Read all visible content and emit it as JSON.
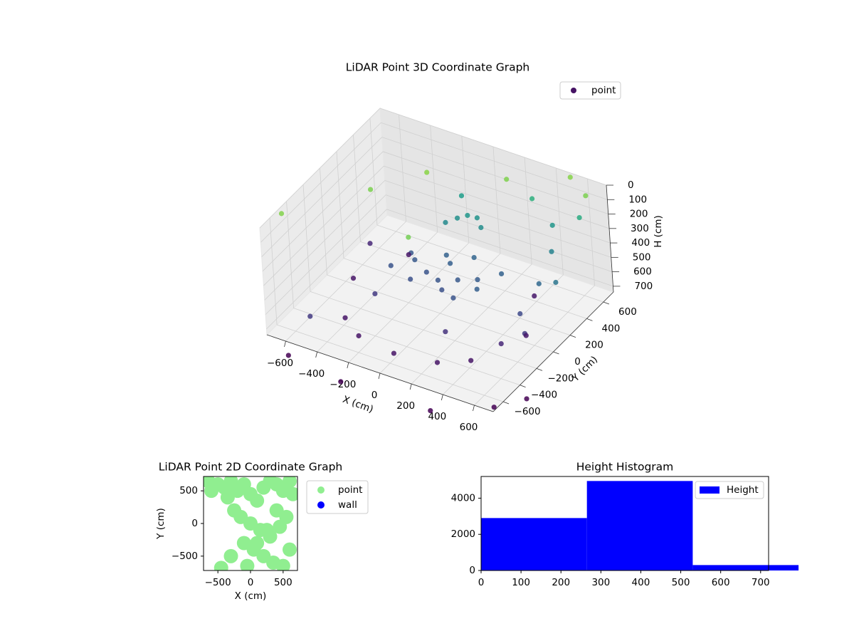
{
  "chart_data": [
    {
      "type": "scatter3d",
      "title": "LiDAR Point 3D Coordinate Graph",
      "xlabel": "X (cm)",
      "ylabel": "Y (cm)",
      "zlabel": "H (cm)",
      "xlim": [
        -720,
        720
      ],
      "ylim": [
        -720,
        720
      ],
      "zlim": [
        0,
        740
      ],
      "zinvert": true,
      "xticks": [
        {
          "value": -600,
          "label": "−600"
        },
        {
          "value": -400,
          "label": "−400"
        },
        {
          "value": -200,
          "label": "−200"
        },
        0,
        200,
        400,
        600
      ],
      "yticks": [
        {
          "value": -600,
          "label": "−600"
        },
        {
          "value": -400,
          "label": "−400"
        },
        {
          "value": -200,
          "label": "−200"
        },
        0,
        200,
        400,
        600
      ],
      "zticks": [
        0,
        100,
        200,
        300,
        400,
        500,
        600,
        700
      ],
      "colormap": "viridis",
      "clim": [
        750,
        -150
      ],
      "legend": "upper right",
      "series": [
        {
          "name": "point",
          "x": [
            -200,
            -100,
            0,
            100,
            200,
            -50,
            50,
            150,
            -150,
            250,
            -250,
            0,
            100,
            -300,
            300,
            -50,
            0,
            50,
            -100,
            100,
            -550,
            -400,
            0,
            400,
            550,
            400,
            -400,
            -250,
            250,
            500,
            520,
            540,
            520,
            450,
            -500,
            600,
            -700,
            -400,
            -200,
            200,
            500,
            650,
            0,
            300,
            -300,
            600,
            -600,
            700,
            -100,
            300,
            650,
            600,
            -600,
            -300,
            200
          ],
          "y": [
            100,
            50,
            0,
            50,
            100,
            200,
            -50,
            -100,
            -50,
            0,
            150,
            150,
            250,
            0,
            200,
            350,
            380,
            400,
            300,
            350,
            0,
            -380,
            -550,
            -380,
            0,
            380,
            380,
            -500,
            -500,
            -200,
            0,
            200,
            400,
            550,
            -600,
            600,
            -500,
            0,
            300,
            500,
            700,
            600,
            -300,
            -700,
            -650,
            -500,
            -700,
            -300,
            500,
            600,
            200,
            -100,
            300,
            -200,
            -300
          ],
          "z": [
            500,
            520,
            510,
            500,
            490,
            470,
            530,
            520,
            530,
            480,
            500,
            480,
            460,
            520,
            470,
            300,
            280,
            290,
            320,
            310,
            700,
            700,
            700,
            700,
            690,
            690,
            700,
            700,
            700,
            650,
            550,
            450,
            350,
            280,
            600,
            200,
            20,
            30,
            10,
            25,
            15,
            30,
            40,
            900,
            950,
            880,
            850,
            900,
            250,
            180,
            400,
            600,
            650,
            600,
            620
          ]
        }
      ]
    },
    {
      "type": "scatter",
      "title": "LiDAR Point 2D Coordinate Graph",
      "xlabel": "X (cm)",
      "ylabel": "Y (cm)",
      "xlim": [
        -720,
        720
      ],
      "ylim": [
        -720,
        720
      ],
      "xticks": [
        {
          "value": -500,
          "label": "−500"
        },
        0,
        500
      ],
      "yticks": [
        {
          "value": -500,
          "label": "−500"
        },
        0,
        500
      ],
      "legend": "outside right",
      "series": [
        {
          "name": "point",
          "color": "#90ee90",
          "x": [
            -650,
            -600,
            -500,
            -400,
            -350,
            -300,
            -200,
            -100,
            0,
            100,
            200,
            300,
            400,
            500,
            600,
            650,
            -250,
            -150,
            0,
            150,
            300,
            450,
            550,
            -100,
            50,
            200,
            350,
            500,
            -50,
            100,
            250,
            400,
            -300,
            -450,
            600
          ],
          "y": [
            650,
            500,
            600,
            550,
            400,
            650,
            500,
            600,
            450,
            350,
            550,
            650,
            600,
            500,
            650,
            450,
            200,
            100,
            0,
            -100,
            -200,
            -50,
            100,
            -300,
            -400,
            -500,
            -600,
            -650,
            -650,
            -300,
            -100,
            200,
            -500,
            -680,
            -400
          ]
        },
        {
          "name": "wall",
          "color": "#0000ff",
          "x": [],
          "y": []
        }
      ]
    },
    {
      "type": "histogram",
      "title": "Height Histogram",
      "bins": [
        0,
        265,
        530,
        795
      ],
      "values": [
        2900,
        4950,
        300
      ],
      "series_name": "Height",
      "color": "#0000ff",
      "xlim": [
        0,
        720
      ],
      "ylim": [
        0,
        5200
      ],
      "xticks": [
        0,
        100,
        200,
        300,
        400,
        500,
        600,
        700
      ],
      "yticks": [
        0,
        2000,
        4000
      ],
      "legend": "upper right"
    }
  ]
}
